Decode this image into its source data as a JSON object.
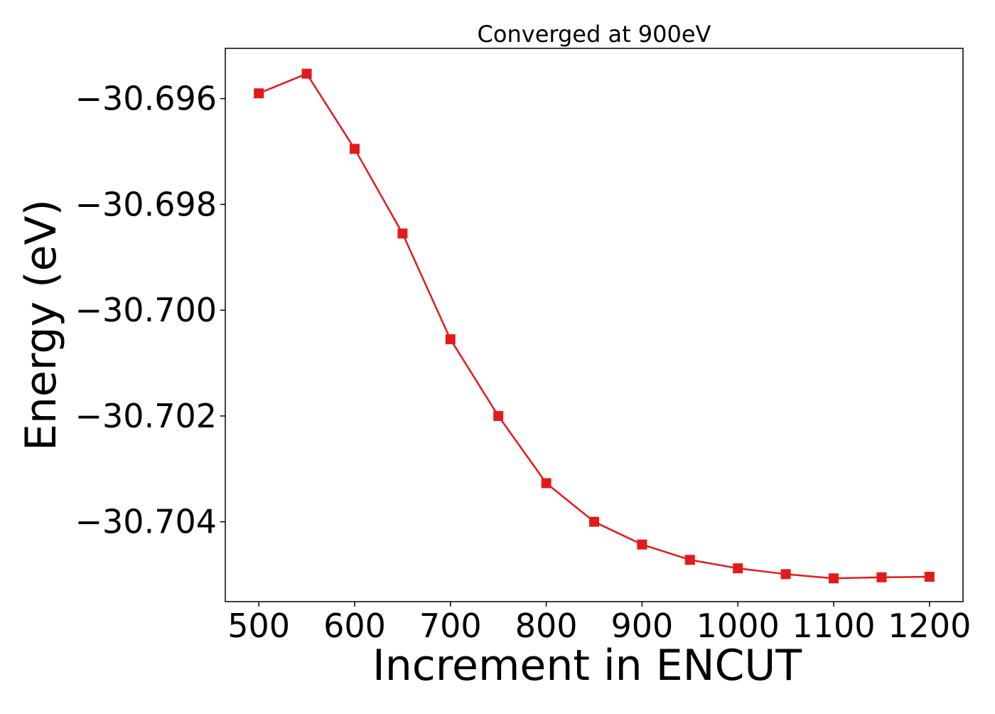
{
  "chart_data": {
    "type": "line",
    "title": "Converged at 900eV",
    "xlabel": "Increment in ENCUT",
    "ylabel": "Energy (eV)",
    "xlim": [
      465,
      1235
    ],
    "ylim": [
      -30.70551,
      -30.69505
    ],
    "xticks": [
      500,
      600,
      700,
      800,
      900,
      1000,
      1100,
      1200
    ],
    "xtick_labels": [
      "500",
      "600",
      "700",
      "800",
      "900",
      "1000",
      "1100",
      "1200"
    ],
    "yticks": [
      -30.696,
      -30.698,
      -30.7,
      -30.702,
      -30.704
    ],
    "ytick_labels": [
      "−30.696",
      "−30.698",
      "−30.700",
      "−30.702",
      "−30.704"
    ],
    "grid": false,
    "legend": "none",
    "series": [
      {
        "color": "#e31a1c",
        "marker": "square",
        "x": [
          500,
          550,
          600,
          650,
          700,
          750,
          800,
          850,
          900,
          950,
          1000,
          1050,
          1100,
          1150,
          1200
        ],
        "y": [
          -30.6959,
          -30.69553,
          -30.69695,
          -30.69855,
          -30.70055,
          -30.702,
          -30.70327,
          -30.704,
          -30.70443,
          -30.70472,
          -30.70488,
          -30.70499,
          -30.70507,
          -30.70505,
          -30.70504
        ]
      }
    ]
  }
}
